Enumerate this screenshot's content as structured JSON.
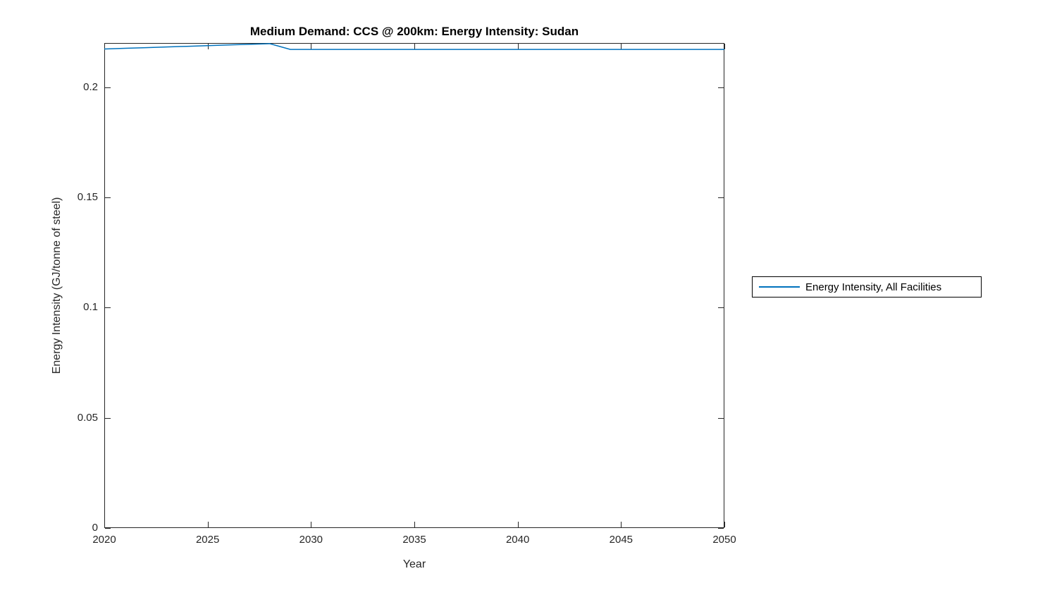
{
  "chart_data": {
    "type": "line",
    "title": "Medium Demand: CCS @ 200km: Energy Intensity: Sudan",
    "xlabel": "Year",
    "ylabel": "Energy Intensity (GJ/tonne of steel)",
    "xlim": [
      2020,
      2050
    ],
    "ylim": [
      0,
      0.22
    ],
    "xticks": [
      2020,
      2025,
      2030,
      2035,
      2040,
      2045,
      2050
    ],
    "xtick_labels": [
      "2020",
      "2025",
      "2030",
      "2035",
      "2040",
      "2045",
      "2050"
    ],
    "yticks": [
      0,
      0.05,
      0.1,
      0.15,
      0.2
    ],
    "ytick_labels": [
      "0",
      "0.05",
      "0.1",
      "0.15",
      "0.2"
    ],
    "grid": false,
    "box": true,
    "axis_color": "#262626",
    "line_color": "#0072BD",
    "legend": {
      "position": "outside-right",
      "entries": [
        "Energy Intensity, All Facilities"
      ]
    },
    "series": [
      {
        "name": "Energy Intensity, All Facilities",
        "x": [
          2020,
          2021,
          2022,
          2023,
          2024,
          2025,
          2026,
          2027,
          2028,
          2029,
          2030,
          2031,
          2032,
          2033,
          2034,
          2035,
          2036,
          2037,
          2038,
          2039,
          2040,
          2041,
          2042,
          2043,
          2044,
          2045,
          2046,
          2047,
          2048,
          2049,
          2050
        ],
        "y": [
          0.2173,
          0.2176,
          0.2179,
          0.2182,
          0.2185,
          0.2188,
          0.2191,
          0.2194,
          0.2197,
          0.2171,
          0.2171,
          0.2171,
          0.2171,
          0.2171,
          0.2171,
          0.2171,
          0.2171,
          0.2171,
          0.2171,
          0.2171,
          0.2171,
          0.2171,
          0.2171,
          0.2171,
          0.2171,
          0.2171,
          0.2171,
          0.2171,
          0.2171,
          0.2171,
          0.2171
        ]
      }
    ]
  }
}
